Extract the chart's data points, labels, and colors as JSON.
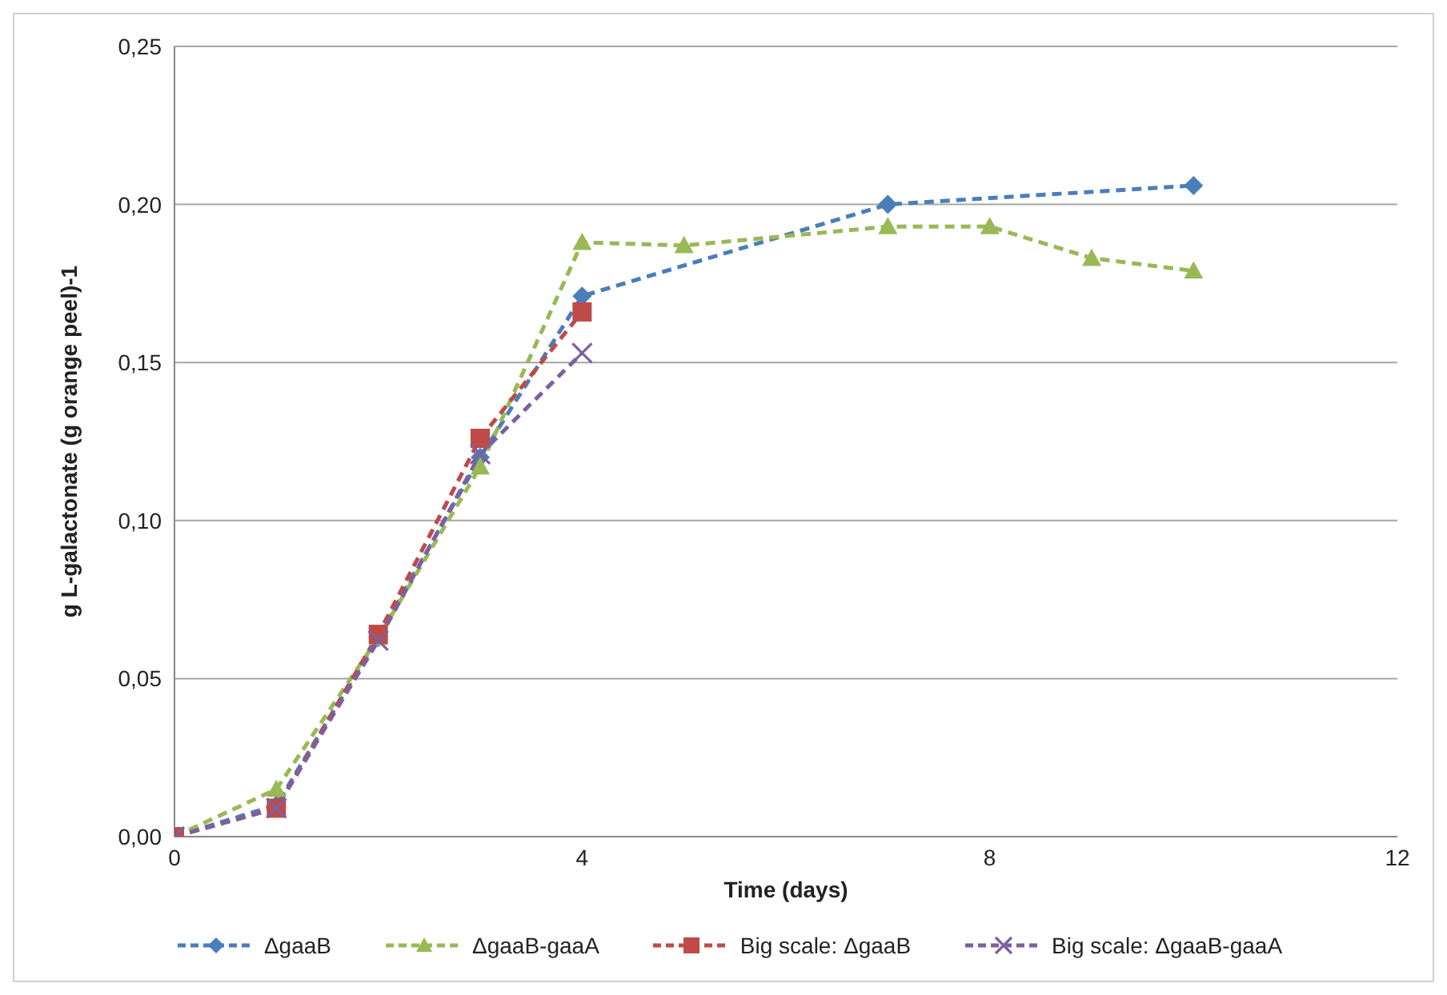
{
  "chart_data": {
    "type": "line",
    "xlabel": "Time (days)",
    "ylabel": "g L-galactonate (g orange peel)-1",
    "xlim": [
      0,
      12
    ],
    "xticks": [
      0,
      4,
      8,
      12
    ],
    "ylim": [
      0,
      0.25
    ],
    "yticks": [
      {
        "value": 0,
        "label": "0,00"
      },
      {
        "value": 0.05,
        "label": "0,05"
      },
      {
        "value": 0.1,
        "label": "0,10"
      },
      {
        "value": 0.15,
        "label": "0,15"
      },
      {
        "value": 0.2,
        "label": "0,20"
      },
      {
        "value": 0.25,
        "label": "0,25"
      }
    ],
    "grid": "y",
    "legend": "bottom",
    "line_style": "dashed",
    "series": [
      {
        "name": "ΔgaaB",
        "color": "#4a7ebb",
        "marker": "diamond",
        "x": [
          0,
          1,
          2,
          3,
          4,
          7,
          10
        ],
        "values": [
          0,
          0.01,
          0.063,
          0.12,
          0.171,
          0.2,
          0.206
        ]
      },
      {
        "name": "ΔgaaB-gaaA",
        "color": "#98b954",
        "marker": "triangle",
        "x": [
          0,
          1,
          2,
          3,
          4,
          5,
          7,
          8,
          9,
          10
        ],
        "values": [
          0,
          0.015,
          0.063,
          0.117,
          0.188,
          0.187,
          0.193,
          0.193,
          0.183,
          0.179
        ]
      },
      {
        "name": "Big scale: ΔgaaB",
        "color": "#be4b48",
        "marker": "square",
        "x": [
          0,
          1,
          2,
          3,
          4
        ],
        "values": [
          0,
          0.009,
          0.064,
          0.126,
          0.166
        ]
      },
      {
        "name": "Big scale: ΔgaaB-gaaA",
        "color": "#7d60a0",
        "marker": "cross",
        "x": [
          0,
          1,
          2,
          3,
          4
        ],
        "values": [
          0,
          0.009,
          0.062,
          0.121,
          0.153
        ]
      }
    ]
  }
}
